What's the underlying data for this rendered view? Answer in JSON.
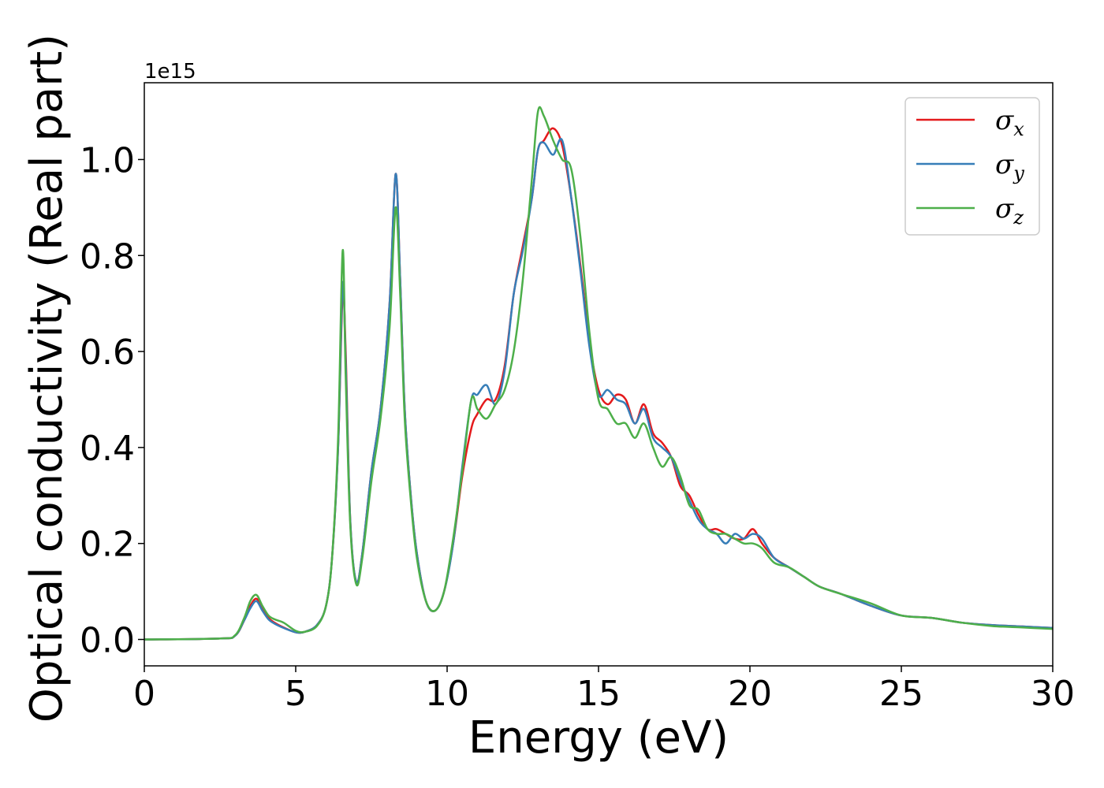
{
  "chart_data": {
    "type": "line",
    "xlabel": "Energy (eV)",
    "ylabel": "Optical conductivity (Real part)",
    "y_offset_label": "1e15",
    "xlim": [
      0,
      30
    ],
    "ylim": [
      -0.055,
      1.16
    ],
    "xticks": [
      0,
      5,
      10,
      15,
      20,
      25,
      30
    ],
    "xtick_labels": [
      "0",
      "5",
      "10",
      "15",
      "20",
      "25",
      "30"
    ],
    "yticks": [
      0.0,
      0.2,
      0.4,
      0.6,
      0.8,
      1.0
    ],
    "ytick_labels": [
      "0.0",
      "0.2",
      "0.4",
      "0.6",
      "0.8",
      "1.0"
    ],
    "grid": false,
    "legend_position": "top-right",
    "series": [
      {
        "name": "σ",
        "subscript": "x",
        "color": "#e41a1c",
        "x": [
          0,
          2.5,
          3.0,
          3.3,
          3.5,
          3.7,
          3.9,
          4.1,
          4.3,
          4.6,
          5.0,
          5.3,
          5.7,
          6.0,
          6.2,
          6.4,
          6.55,
          6.65,
          6.8,
          7.0,
          7.2,
          7.5,
          7.8,
          8.1,
          8.3,
          8.45,
          8.6,
          8.8,
          9.0,
          9.3,
          9.6,
          9.9,
          10.2,
          10.5,
          10.8,
          11.0,
          11.3,
          11.6,
          11.9,
          12.2,
          12.5,
          12.8,
          13.0,
          13.2,
          13.5,
          13.8,
          14.1,
          14.4,
          14.7,
          15.0,
          15.3,
          15.6,
          15.9,
          16.2,
          16.5,
          16.8,
          17.1,
          17.4,
          17.7,
          18.0,
          18.3,
          18.6,
          18.9,
          19.2,
          19.5,
          19.8,
          20.1,
          20.4,
          20.8,
          21.3,
          21.8,
          22.3,
          23.0,
          24.0,
          25.0,
          26.0,
          27.0,
          28.0,
          29.0,
          30.0
        ],
        "values": [
          0.0,
          0.002,
          0.008,
          0.04,
          0.07,
          0.085,
          0.065,
          0.045,
          0.035,
          0.025,
          0.015,
          0.016,
          0.03,
          0.07,
          0.17,
          0.4,
          0.72,
          0.6,
          0.25,
          0.12,
          0.18,
          0.35,
          0.48,
          0.7,
          0.97,
          0.75,
          0.48,
          0.3,
          0.18,
          0.08,
          0.06,
          0.1,
          0.2,
          0.34,
          0.44,
          0.47,
          0.5,
          0.5,
          0.57,
          0.72,
          0.82,
          0.92,
          1.02,
          1.04,
          1.065,
          1.03,
          0.92,
          0.78,
          0.62,
          0.52,
          0.49,
          0.51,
          0.5,
          0.45,
          0.49,
          0.43,
          0.41,
          0.38,
          0.32,
          0.3,
          0.26,
          0.23,
          0.23,
          0.22,
          0.21,
          0.21,
          0.23,
          0.2,
          0.17,
          0.15,
          0.13,
          0.11,
          0.095,
          0.07,
          0.05,
          0.045,
          0.035,
          0.03,
          0.027,
          0.024
        ]
      },
      {
        "name": "σ",
        "subscript": "y",
        "color": "#377eb8",
        "x": [
          0,
          2.5,
          3.0,
          3.3,
          3.5,
          3.7,
          3.9,
          4.1,
          4.3,
          4.6,
          5.0,
          5.3,
          5.7,
          6.0,
          6.2,
          6.4,
          6.55,
          6.65,
          6.8,
          7.0,
          7.2,
          7.5,
          7.8,
          8.1,
          8.3,
          8.45,
          8.6,
          8.8,
          9.0,
          9.3,
          9.6,
          9.9,
          10.2,
          10.5,
          10.8,
          11.0,
          11.3,
          11.6,
          11.9,
          12.2,
          12.5,
          12.8,
          13.0,
          13.2,
          13.5,
          13.8,
          14.1,
          14.4,
          14.7,
          15.0,
          15.3,
          15.6,
          15.9,
          16.2,
          16.5,
          16.8,
          17.1,
          17.4,
          17.7,
          18.0,
          18.3,
          18.6,
          18.9,
          19.2,
          19.5,
          19.8,
          20.1,
          20.4,
          20.8,
          21.3,
          21.8,
          22.3,
          23.0,
          24.0,
          25.0,
          26.0,
          27.0,
          28.0,
          29.0,
          30.0
        ],
        "values": [
          0.0,
          0.002,
          0.008,
          0.04,
          0.065,
          0.08,
          0.06,
          0.042,
          0.033,
          0.024,
          0.015,
          0.016,
          0.03,
          0.07,
          0.17,
          0.4,
          0.74,
          0.58,
          0.25,
          0.12,
          0.18,
          0.35,
          0.48,
          0.7,
          0.97,
          0.75,
          0.48,
          0.3,
          0.18,
          0.08,
          0.06,
          0.1,
          0.2,
          0.36,
          0.5,
          0.51,
          0.53,
          0.49,
          0.56,
          0.72,
          0.81,
          0.92,
          1.02,
          1.035,
          1.01,
          1.04,
          0.92,
          0.77,
          0.61,
          0.51,
          0.52,
          0.5,
          0.49,
          0.45,
          0.48,
          0.42,
          0.4,
          0.38,
          0.33,
          0.29,
          0.25,
          0.23,
          0.22,
          0.2,
          0.22,
          0.21,
          0.22,
          0.21,
          0.17,
          0.15,
          0.13,
          0.11,
          0.095,
          0.07,
          0.05,
          0.045,
          0.035,
          0.03,
          0.027,
          0.024
        ]
      },
      {
        "name": "σ",
        "subscript": "z",
        "color": "#4daf4a",
        "x": [
          0,
          2.5,
          3.0,
          3.3,
          3.5,
          3.7,
          3.9,
          4.1,
          4.3,
          4.6,
          5.0,
          5.3,
          5.7,
          6.0,
          6.2,
          6.4,
          6.55,
          6.65,
          6.8,
          7.0,
          7.2,
          7.5,
          7.8,
          8.1,
          8.3,
          8.45,
          8.6,
          8.8,
          9.0,
          9.3,
          9.6,
          9.9,
          10.2,
          10.5,
          10.8,
          11.0,
          11.3,
          11.6,
          11.9,
          12.2,
          12.5,
          12.8,
          13.0,
          13.2,
          13.5,
          13.8,
          14.1,
          14.4,
          14.7,
          15.0,
          15.3,
          15.6,
          15.9,
          16.2,
          16.5,
          16.8,
          17.1,
          17.4,
          17.7,
          18.0,
          18.3,
          18.6,
          18.9,
          19.2,
          19.5,
          19.8,
          20.1,
          20.4,
          20.8,
          21.3,
          21.8,
          22.3,
          23.0,
          24.0,
          25.0,
          26.0,
          27.0,
          28.0,
          29.0,
          30.0
        ],
        "values": [
          0.0,
          0.002,
          0.009,
          0.045,
          0.08,
          0.093,
          0.07,
          0.05,
          0.042,
          0.035,
          0.018,
          0.016,
          0.028,
          0.07,
          0.17,
          0.42,
          0.81,
          0.55,
          0.24,
          0.115,
          0.17,
          0.33,
          0.46,
          0.65,
          0.9,
          0.72,
          0.46,
          0.29,
          0.17,
          0.08,
          0.06,
          0.1,
          0.21,
          0.35,
          0.5,
          0.48,
          0.46,
          0.49,
          0.52,
          0.6,
          0.75,
          0.96,
          1.1,
          1.09,
          1.04,
          1.0,
          0.98,
          0.84,
          0.64,
          0.5,
          0.48,
          0.45,
          0.45,
          0.42,
          0.45,
          0.4,
          0.36,
          0.38,
          0.34,
          0.28,
          0.27,
          0.23,
          0.22,
          0.22,
          0.21,
          0.2,
          0.2,
          0.19,
          0.16,
          0.15,
          0.13,
          0.11,
          0.095,
          0.075,
          0.05,
          0.045,
          0.035,
          0.028,
          0.025,
          0.022
        ]
      }
    ]
  }
}
